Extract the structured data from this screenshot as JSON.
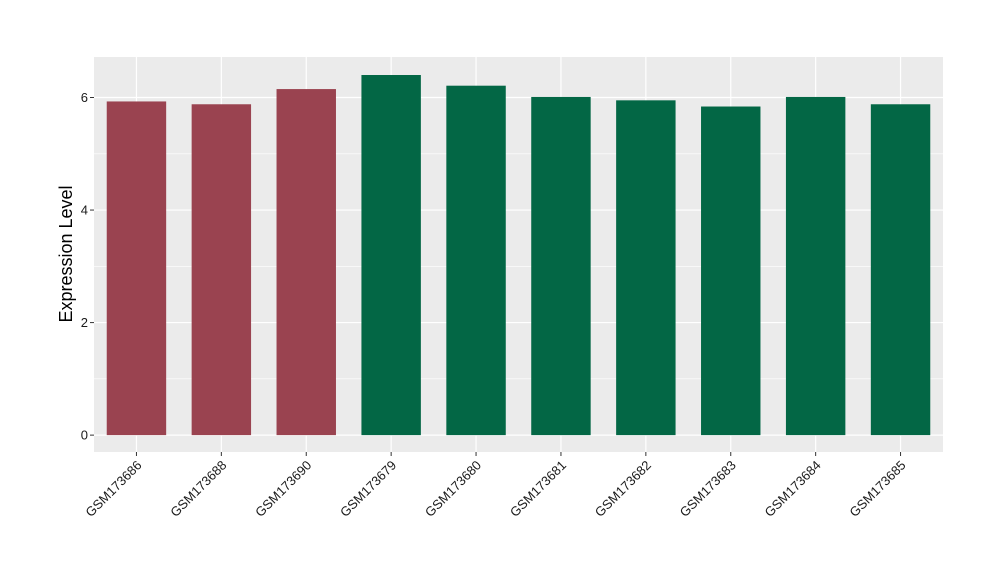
{
  "chart_data": {
    "type": "bar",
    "title": "",
    "xlabel": "",
    "ylabel": "Expression Level",
    "ylim": [
      -0.3,
      6.72
    ],
    "yticks": [
      0,
      2,
      4,
      6
    ],
    "grid": true,
    "legend": "none",
    "background": "#ebebeb",
    "gridline_color": "#ffffff",
    "categories": [
      "GSM173686",
      "GSM173688",
      "GSM173690",
      "GSM173679",
      "GSM173680",
      "GSM173681",
      "GSM173682",
      "GSM173683",
      "GSM173684",
      "GSM173685"
    ],
    "values": [
      5.93,
      5.88,
      6.15,
      6.4,
      6.21,
      6.01,
      5.95,
      5.84,
      6.01,
      5.88
    ],
    "bar_colors": [
      "#9a4350",
      "#9a4350",
      "#9a4350",
      "#036745",
      "#036745",
      "#036745",
      "#036745",
      "#036745",
      "#036745",
      "#036745"
    ]
  }
}
